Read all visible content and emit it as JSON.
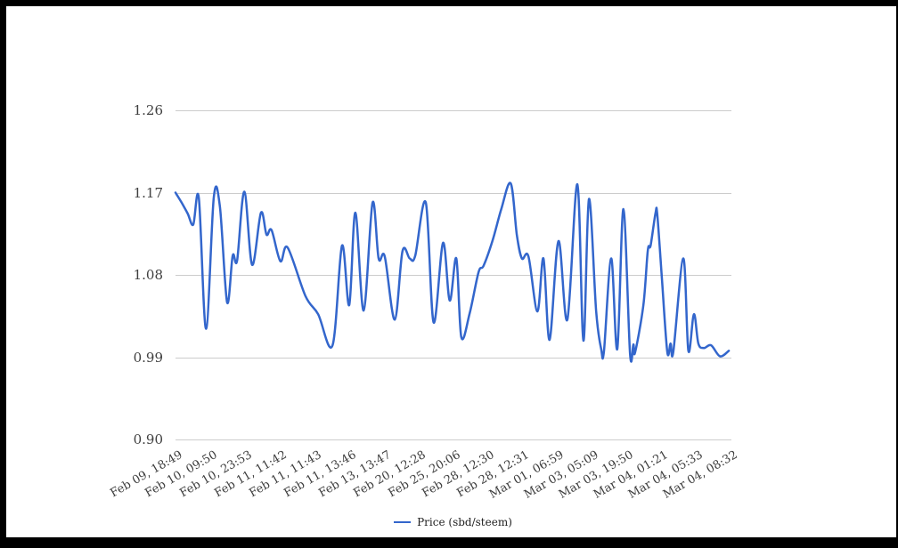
{
  "page": {
    "background": "#ffffff",
    "frame_color": "#000000"
  },
  "chart_data": {
    "type": "line",
    "title": "",
    "legend": {
      "label": "Price (sbd/steem)",
      "position": "bottom"
    },
    "series_color": "#3366cc",
    "gridline_color": "#cccccc",
    "y_axis": {
      "min": 0.9,
      "max": 1.26,
      "ticks": [
        "1.26",
        "1.17",
        "1.08",
        "0.99",
        "0.90"
      ],
      "gridlines": true
    },
    "x_axis": {
      "tick_labels": [
        "Feb 09, 18:49",
        "Feb 10, 09:50",
        "Feb 10, 23:53",
        "Feb 11, 11:42",
        "Feb 11, 11:43",
        "Feb 11, 13:46",
        "Feb 13, 13:47",
        "Feb 20, 12:28",
        "Feb 25, 20:06",
        "Feb 28, 12:30",
        "Feb 28, 12:31",
        "Mar 01, 06:59",
        "Mar 03, 05:09",
        "Mar 03, 19:50",
        "Mar 04, 01:21",
        "Mar 04, 05:33",
        "Mar 04, 08:32"
      ]
    },
    "points": [
      [
        0.0,
        1.17
      ],
      [
        0.011,
        1.159
      ],
      [
        0.022,
        1.147
      ],
      [
        0.032,
        1.135
      ],
      [
        0.042,
        1.164
      ],
      [
        0.055,
        1.021
      ],
      [
        0.069,
        1.165
      ],
      [
        0.08,
        1.155
      ],
      [
        0.093,
        1.05
      ],
      [
        0.103,
        1.101
      ],
      [
        0.111,
        1.096
      ],
      [
        0.124,
        1.171
      ],
      [
        0.138,
        1.091
      ],
      [
        0.154,
        1.148
      ],
      [
        0.164,
        1.124
      ],
      [
        0.173,
        1.129
      ],
      [
        0.189,
        1.095
      ],
      [
        0.202,
        1.11
      ],
      [
        0.234,
        1.057
      ],
      [
        0.257,
        1.037
      ],
      [
        0.283,
        1.003
      ],
      [
        0.3,
        1.112
      ],
      [
        0.313,
        1.047
      ],
      [
        0.324,
        1.148
      ],
      [
        0.339,
        1.041
      ],
      [
        0.355,
        1.159
      ],
      [
        0.366,
        1.098
      ],
      [
        0.377,
        1.1
      ],
      [
        0.395,
        1.031
      ],
      [
        0.409,
        1.106
      ],
      [
        0.422,
        1.098
      ],
      [
        0.432,
        1.101
      ],
      [
        0.451,
        1.159
      ],
      [
        0.465,
        1.028
      ],
      [
        0.482,
        1.115
      ],
      [
        0.494,
        1.052
      ],
      [
        0.506,
        1.098
      ],
      [
        0.515,
        1.012
      ],
      [
        0.53,
        1.038
      ],
      [
        0.546,
        1.083
      ],
      [
        0.555,
        1.09
      ],
      [
        0.571,
        1.117
      ],
      [
        0.587,
        1.152
      ],
      [
        0.604,
        1.18
      ],
      [
        0.615,
        1.124
      ],
      [
        0.624,
        1.098
      ],
      [
        0.636,
        1.1
      ],
      [
        0.652,
        1.04
      ],
      [
        0.663,
        1.098
      ],
      [
        0.674,
        1.009
      ],
      [
        0.69,
        1.117
      ],
      [
        0.706,
        1.031
      ],
      [
        0.724,
        1.179
      ],
      [
        0.735,
        1.008
      ],
      [
        0.745,
        1.163
      ],
      [
        0.758,
        1.04
      ],
      [
        0.767,
        0.999
      ],
      [
        0.772,
        0.997
      ],
      [
        0.785,
        1.098
      ],
      [
        0.796,
        0.999
      ],
      [
        0.807,
        1.152
      ],
      [
        0.819,
        0.994
      ],
      [
        0.825,
        1.004
      ],
      [
        0.828,
        0.995
      ],
      [
        0.843,
        1.047
      ],
      [
        0.851,
        1.107
      ],
      [
        0.856,
        1.112
      ],
      [
        0.865,
        1.148
      ],
      [
        0.868,
        1.146
      ],
      [
        0.876,
        1.08
      ],
      [
        0.886,
        0.996
      ],
      [
        0.892,
        1.005
      ],
      [
        0.897,
        0.996
      ],
      [
        0.915,
        1.098
      ],
      [
        0.924,
        0.997
      ],
      [
        0.934,
        1.037
      ],
      [
        0.942,
        1.005
      ],
      [
        0.952,
        1.0
      ],
      [
        0.965,
        1.003
      ],
      [
        0.981,
        0.991
      ],
      [
        0.997,
        0.997
      ]
    ]
  }
}
